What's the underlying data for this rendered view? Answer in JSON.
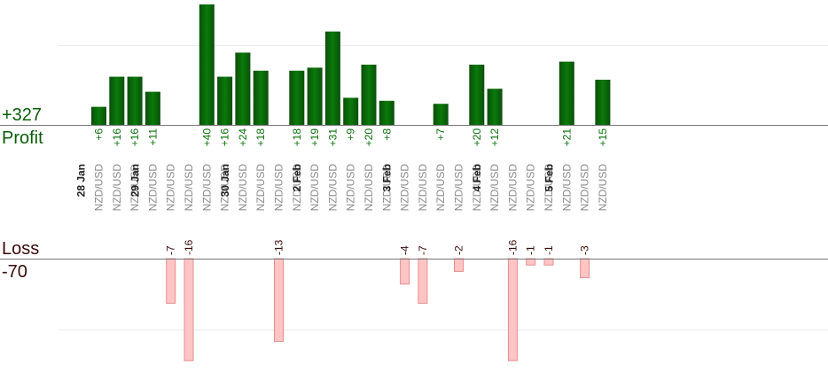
{
  "chart_data": {
    "type": "bar",
    "profit_label": "Profit",
    "profit_total": "+327",
    "loss_label": "Loss",
    "loss_total": "-70",
    "colors": {
      "profit_dark": "#0b4f0b",
      "profit_light": "#0a7a0a",
      "profit_text": "#0a6e0a",
      "loss_fill": "#ffc4c4",
      "loss_stroke": "#e58f8f",
      "loss_text": "#3b0a0a",
      "pair_text": "#8a8a8a",
      "date_text": "#222222",
      "axis": "#777777",
      "grid": "#ececec"
    },
    "trades": [
      {
        "pair": "NZD/USD",
        "date": "28 Jan",
        "value": 6
      },
      {
        "pair": "NZD/USD",
        "date": "",
        "value": 16
      },
      {
        "pair": "NZD/USD",
        "date": "",
        "value": 16
      },
      {
        "pair": "NZD/USD",
        "date": "29 Jan",
        "value": 11
      },
      {
        "pair": "NZD/USD",
        "date": "",
        "value": -7
      },
      {
        "pair": "NZD/USD",
        "date": "",
        "value": -16
      },
      {
        "pair": "NZD/USD",
        "date": "",
        "value": 40
      },
      {
        "pair": "NZD/USD",
        "date": "",
        "value": 16
      },
      {
        "pair": "NZD/USD",
        "date": "30 Jan",
        "value": 24
      },
      {
        "pair": "NZD/USD",
        "date": "",
        "value": 18
      },
      {
        "pair": "NZD/USD",
        "date": "",
        "value": -13
      },
      {
        "pair": "NZD/USD",
        "date": "",
        "value": 18
      },
      {
        "pair": "NZD/USD",
        "date": "2 Feb",
        "value": 19
      },
      {
        "pair": "NZD/USD",
        "date": "",
        "value": 31
      },
      {
        "pair": "NZD/USD",
        "date": "",
        "value": 9
      },
      {
        "pair": "NZD/USD",
        "date": "",
        "value": 20
      },
      {
        "pair": "NZD/USD",
        "date": "",
        "value": 8
      },
      {
        "pair": "NZD/USD",
        "date": "3 Feb",
        "value": -4
      },
      {
        "pair": "NZD/USD",
        "date": "",
        "value": -7
      },
      {
        "pair": "NZD/USD",
        "date": "",
        "value": 7
      },
      {
        "pair": "NZD/USD",
        "date": "",
        "value": -2
      },
      {
        "pair": "NZD/USD",
        "date": "",
        "value": 20
      },
      {
        "pair": "NZD/USD",
        "date": "4 Feb",
        "value": 12
      },
      {
        "pair": "NZD/USD",
        "date": "",
        "value": -16
      },
      {
        "pair": "NZD/USD",
        "date": "",
        "value": -1
      },
      {
        "pair": "NZD/USD",
        "date": "",
        "value": -1
      },
      {
        "pair": "NZD/USD",
        "date": "5 Feb",
        "value": 21
      },
      {
        "pair": "NZD/USD",
        "date": "",
        "value": -3
      },
      {
        "pair": "NZD/USD",
        "date": "",
        "value": 15
      }
    ]
  }
}
